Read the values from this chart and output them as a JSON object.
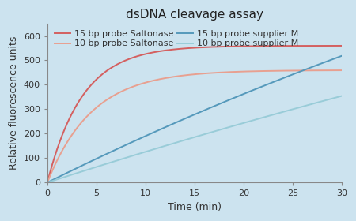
{
  "title": "dsDNA cleavage assay",
  "xlabel": "Time (min)",
  "ylabel": "Relative fluorescence units",
  "background_color": "#cce3ef",
  "xlim": [
    0,
    30
  ],
  "ylim": [
    0,
    650
  ],
  "xticks": [
    0,
    5,
    10,
    15,
    20,
    25,
    30
  ],
  "yticks": [
    0,
    100,
    200,
    300,
    400,
    500,
    600
  ],
  "series": [
    {
      "label": "15 bp probe Saltonase",
      "color": "#d46060",
      "A": 560,
      "k": 0.28
    },
    {
      "label": "10 bp probe Saltonase",
      "color": "#e8a090",
      "A": 460,
      "k": 0.22
    },
    {
      "label": "15 bp probe supplier M",
      "color": "#5599bb",
      "A": 2000,
      "k": 0.01
    },
    {
      "label": "10 bp probe supplier M",
      "color": "#99ccd8",
      "A": 2000,
      "k": 0.0065
    }
  ],
  "legend_ncol": 2,
  "title_fontsize": 11,
  "axis_fontsize": 9,
  "legend_fontsize": 8,
  "tick_fontsize": 8
}
